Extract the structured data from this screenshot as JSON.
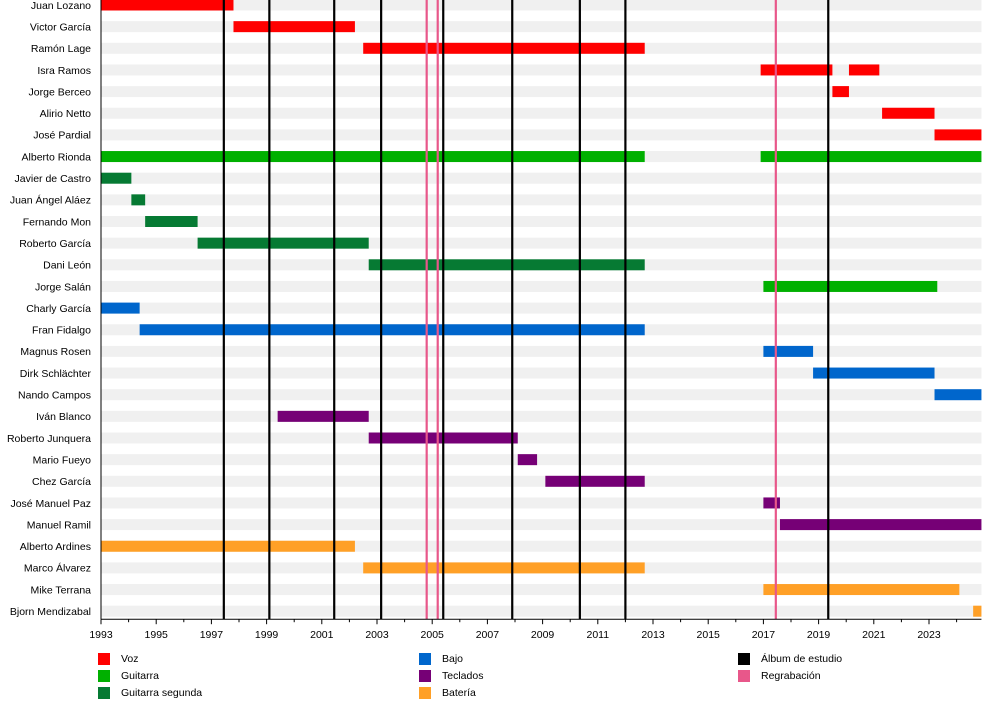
{
  "chart_data": {
    "type": "timeline",
    "title": "",
    "xlabel": "",
    "ylabel": "",
    "xlim": [
      1993,
      2024.9
    ],
    "x_ticks": [
      "1993",
      "1995",
      "1997",
      "1999",
      "2001",
      "2003",
      "2005",
      "2007",
      "2009",
      "2011",
      "2013",
      "2015",
      "2017",
      "2019",
      "2021",
      "2023"
    ],
    "colors": {
      "Voz": "#ff0000",
      "Guitarra": "#00b000",
      "Guitarra segunda": "#067a33",
      "Bajo": "#0066cc",
      "Teclados": "#760076",
      "Batería": "#ffa027",
      "Álbum de estudio": "#000000",
      "Regrabación": "#e8578a"
    },
    "members": [
      {
        "name": "Juan Lozano",
        "role": "Voz",
        "periods": [
          [
            1993.0,
            1997.8
          ]
        ]
      },
      {
        "name": "Victor García",
        "role": "Voz",
        "periods": [
          [
            1997.8,
            2002.2
          ]
        ]
      },
      {
        "name": "Ramón Lage",
        "role": "Voz",
        "periods": [
          [
            2002.5,
            2012.7
          ]
        ]
      },
      {
        "name": "Isra Ramos",
        "role": "Voz",
        "periods": [
          [
            2016.9,
            2019.5
          ],
          [
            2020.1,
            2021.2
          ]
        ]
      },
      {
        "name": "Jorge Berceo",
        "role": "Voz",
        "periods": [
          [
            2019.5,
            2020.1
          ]
        ]
      },
      {
        "name": "Alirio Netto",
        "role": "Voz",
        "periods": [
          [
            2021.3,
            2023.2
          ]
        ]
      },
      {
        "name": "José Pardial",
        "role": "Voz",
        "periods": [
          [
            2023.2,
            2024.9
          ]
        ]
      },
      {
        "name": "Alberto Rionda",
        "role": "Guitarra",
        "periods": [
          [
            1993.0,
            2012.7
          ],
          [
            2016.9,
            2024.9
          ]
        ]
      },
      {
        "name": "Javier de Castro",
        "role": "Guitarra segunda",
        "periods": [
          [
            1993.0,
            1994.1
          ]
        ]
      },
      {
        "name": "Juan Ángel Aláez",
        "role": "Guitarra segunda",
        "periods": [
          [
            1994.1,
            1994.6
          ]
        ]
      },
      {
        "name": "Fernando Mon",
        "role": "Guitarra segunda",
        "periods": [
          [
            1994.6,
            1996.5
          ]
        ]
      },
      {
        "name": "Roberto García",
        "role": "Guitarra segunda",
        "periods": [
          [
            1996.5,
            2002.7
          ]
        ]
      },
      {
        "name": "Dani León",
        "role": "Guitarra segunda",
        "periods": [
          [
            2002.7,
            2012.7
          ]
        ]
      },
      {
        "name": "Jorge Salán",
        "role": "Guitarra",
        "periods": [
          [
            2017.0,
            2023.3
          ]
        ]
      },
      {
        "name": "Charly García",
        "role": "Bajo",
        "periods": [
          [
            1993.0,
            1994.4
          ]
        ]
      },
      {
        "name": "Fran Fidalgo",
        "role": "Bajo",
        "periods": [
          [
            1994.4,
            2012.7
          ]
        ]
      },
      {
        "name": "Magnus Rosen",
        "role": "Bajo",
        "periods": [
          [
            2017.0,
            2018.8
          ]
        ]
      },
      {
        "name": "Dirk Schlächter",
        "role": "Bajo",
        "periods": [
          [
            2018.8,
            2023.2
          ]
        ]
      },
      {
        "name": "Nando Campos",
        "role": "Bajo",
        "periods": [
          [
            2023.2,
            2024.9
          ]
        ]
      },
      {
        "name": "Iván Blanco",
        "role": "Teclados",
        "periods": [
          [
            1999.4,
            2002.7
          ]
        ]
      },
      {
        "name": "Roberto Junquera",
        "role": "Teclados",
        "periods": [
          [
            2002.7,
            2008.1
          ]
        ]
      },
      {
        "name": "Mario Fueyo",
        "role": "Teclados",
        "periods": [
          [
            2008.1,
            2008.8
          ]
        ]
      },
      {
        "name": "Chez García",
        "role": "Teclados",
        "periods": [
          [
            2009.1,
            2012.7
          ]
        ]
      },
      {
        "name": "José Manuel Paz",
        "role": "Teclados",
        "periods": [
          [
            2017.0,
            2017.6
          ]
        ]
      },
      {
        "name": "Manuel Ramil",
        "role": "Teclados",
        "periods": [
          [
            2017.6,
            2024.9
          ]
        ]
      },
      {
        "name": "Alberto Ardines",
        "role": "Batería",
        "periods": [
          [
            1993.0,
            2002.2
          ]
        ]
      },
      {
        "name": "Marco Álvarez",
        "role": "Batería",
        "periods": [
          [
            2002.5,
            2012.7
          ]
        ]
      },
      {
        "name": "Mike Terrana",
        "role": "Batería",
        "periods": [
          [
            2017.0,
            2024.1
          ]
        ]
      },
      {
        "name": "Bjorn Mendizabal",
        "role": "Batería",
        "periods": [
          [
            2024.6,
            2024.9
          ]
        ]
      }
    ],
    "studio_albums": [
      1997.45,
      1999.1,
      2001.45,
      2003.15,
      2005.4,
      2007.9,
      2010.35,
      2012.0,
      2019.35
    ],
    "rerecordings": [
      2004.8,
      2005.2,
      2017.45
    ],
    "legend": [
      {
        "label": "Voz",
        "key": "Voz"
      },
      {
        "label": "Guitarra",
        "key": "Guitarra"
      },
      {
        "label": "Guitarra segunda",
        "key": "Guitarra segunda"
      },
      {
        "label": "Bajo",
        "key": "Bajo"
      },
      {
        "label": "Teclados",
        "key": "Teclados"
      },
      {
        "label": "Batería",
        "key": "Batería"
      },
      {
        "label": "Álbum de estudio",
        "key": "Álbum de estudio"
      },
      {
        "label": "Regrabación",
        "key": "Regrabación"
      }
    ],
    "legend_position": "bottom"
  }
}
